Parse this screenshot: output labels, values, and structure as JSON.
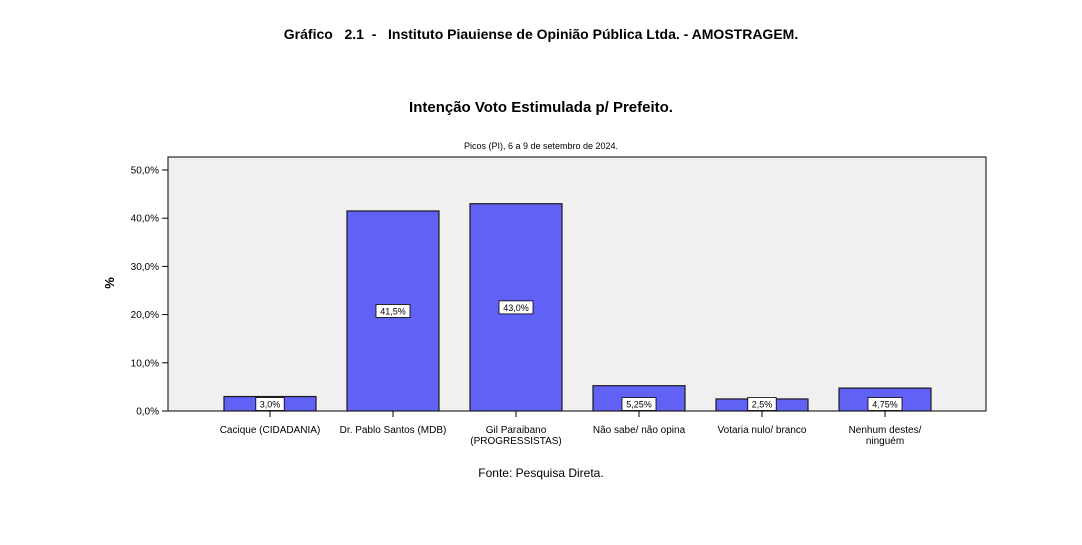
{
  "header": {
    "title": "Gráfico   2.1  -   Instituto Piauiense de Opinião Pública Ltda. - AMOSTRAGEM."
  },
  "chart_data": {
    "type": "bar",
    "title": "Intenção Voto Estimulada p/ Prefeito.",
    "subtitle": "Picos (PI), 6 a 9 de setembro de 2024.",
    "xlabel": "",
    "ylabel": "%",
    "ylim": [
      0,
      50
    ],
    "yticks": [
      "0,0%",
      "10,0%",
      "20,0%",
      "30,0%",
      "40,0%",
      "50,0%"
    ],
    "categories": [
      [
        "Cacique (CIDADANIA)"
      ],
      [
        "Dr. Pablo Santos (MDB)"
      ],
      [
        "Gil Paraibano",
        "(PROGRESSISTAS)"
      ],
      [
        "Não sabe/ não opina"
      ],
      [
        "Votaria nulo/ branco"
      ],
      [
        "Nenhum destes/",
        "ninguém"
      ]
    ],
    "values": [
      3.0,
      41.5,
      43.0,
      5.25,
      2.5,
      4.75
    ],
    "data_labels": [
      "3,0%",
      "41,5%",
      "43,0%",
      "5,25%",
      "2,5%",
      "4,75%"
    ],
    "grid": false,
    "colors": {
      "bar_fill": "#6161f5",
      "bar_stroke": "#1a1a1a",
      "plot_background": "#f0f0f0"
    }
  },
  "footer": {
    "source": "Fonte: Pesquisa Direta."
  }
}
